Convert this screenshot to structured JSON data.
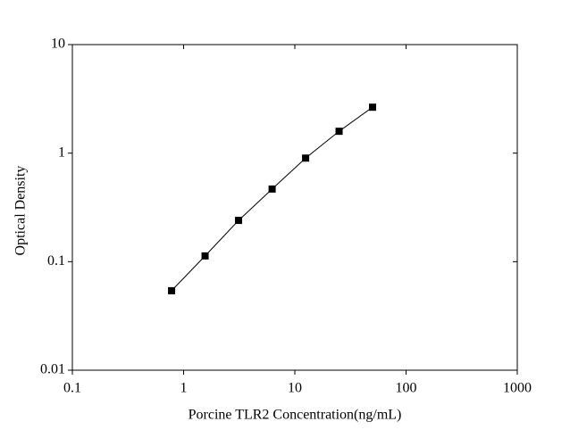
{
  "chart_data": {
    "type": "line",
    "marker": "square",
    "xlabel": "Porcine TLR2 Concentration(ng/mL)",
    "ylabel": "Optical Density",
    "x": [
      0.78,
      1.56,
      3.12,
      6.25,
      12.5,
      25,
      50
    ],
    "series": [
      {
        "color": "#000000",
        "values": [
          0.054,
          0.113,
          0.24,
          0.467,
          0.9,
          1.59,
          2.65
        ]
      }
    ],
    "x_scale": "log",
    "y_scale": "log",
    "xlim": [
      0.1,
      1000
    ],
    "xticks": [
      0.1,
      1,
      10,
      100,
      1000
    ],
    "ylim": [
      0.01,
      10
    ],
    "yticks": [
      0.01,
      0.1,
      1,
      10
    ]
  }
}
